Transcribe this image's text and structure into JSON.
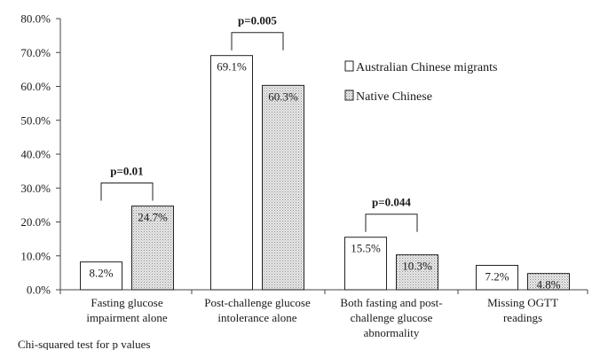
{
  "chart_data": {
    "type": "bar",
    "ylim": [
      0,
      80
    ],
    "y_ticks": [
      "0.0%",
      "10.0%",
      "20.0%",
      "30.0%",
      "40.0%",
      "50.0%",
      "60.0%",
      "70.0%",
      "80.0%"
    ],
    "y_tick_values": [
      0,
      10,
      20,
      30,
      40,
      50,
      60,
      70,
      80
    ],
    "categories": [
      [
        "Fasting glucose",
        "impairment alone"
      ],
      [
        "Post-challenge glucose",
        "intolerance alone"
      ],
      [
        "Both fasting and post-",
        "challenge glucose",
        "abnormality"
      ],
      [
        "Missing OGTT",
        "readings"
      ]
    ],
    "series": [
      {
        "name": "Australian Chinese migrants",
        "values": [
          8.2,
          69.1,
          15.5,
          7.2
        ],
        "labels": [
          "8.2%",
          "69.1%",
          "15.5%",
          "7.2%"
        ],
        "fill": "#ffffff"
      },
      {
        "name": "Native Chinese",
        "values": [
          24.7,
          60.3,
          10.3,
          4.8
        ],
        "labels": [
          "24.7%",
          "60.3%",
          "10.3%",
          "4.8%"
        ],
        "fill": "dotted-grey"
      }
    ],
    "significance": [
      {
        "category_index": 0,
        "text": "p=0.01"
      },
      {
        "category_index": 1,
        "text": "p=0.005"
      },
      {
        "category_index": 2,
        "text": "p=0.044"
      }
    ],
    "legend_position": "right",
    "grid": false,
    "footnote": "Chi-squared test for p values"
  }
}
